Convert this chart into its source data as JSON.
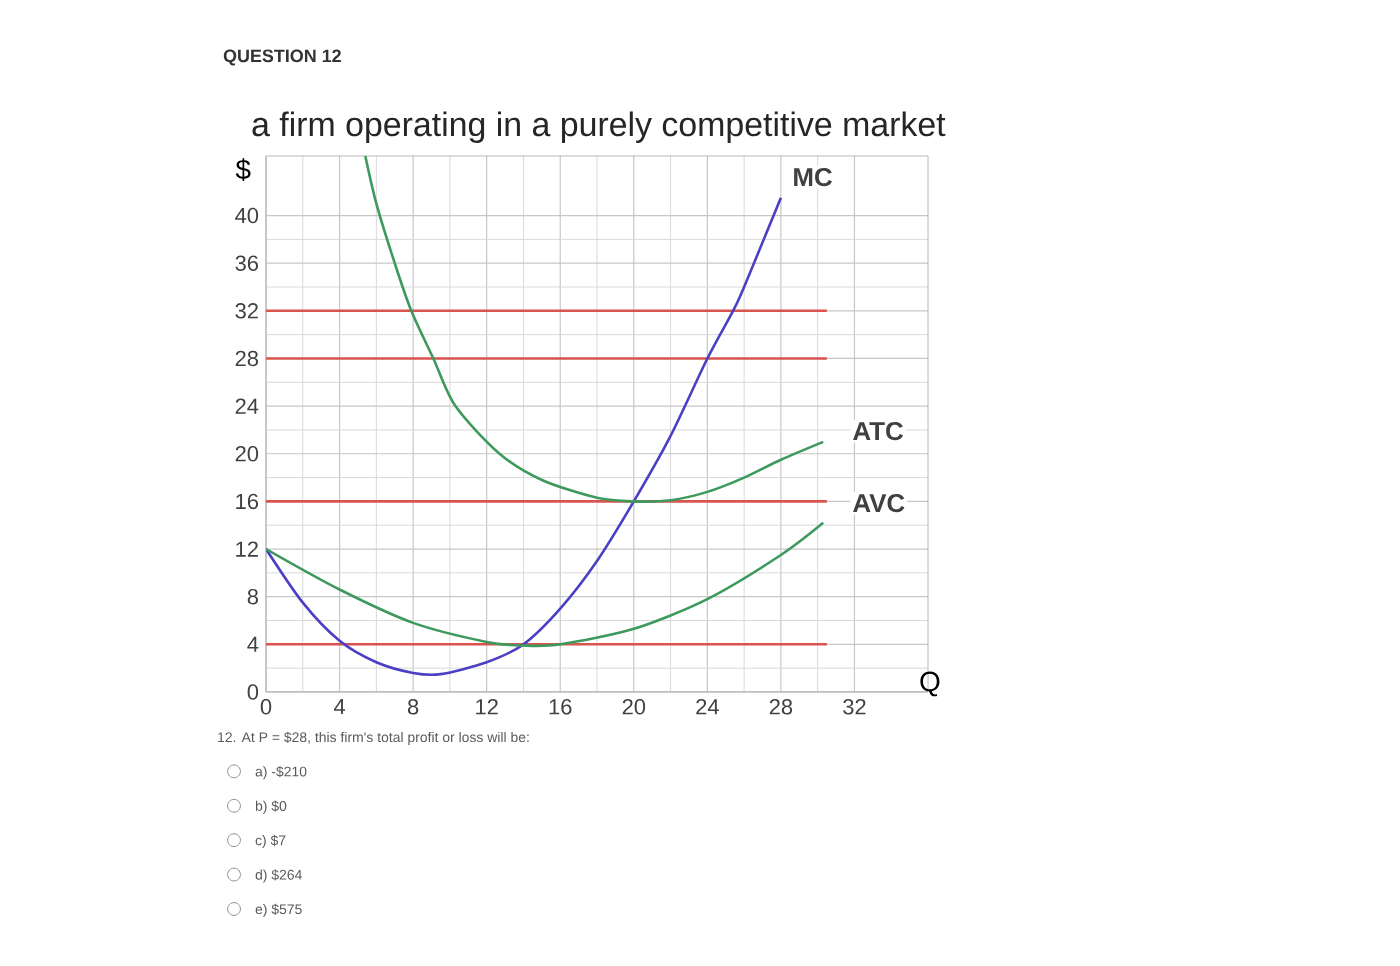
{
  "chart_data": {
    "type": "line",
    "title": "a firm operating in a purely competitive market",
    "xlabel": "Q",
    "ylabel": "$",
    "x": [
      0,
      2,
      4,
      6,
      8,
      9.5,
      12,
      14,
      16,
      18,
      20,
      22,
      24,
      25.4,
      26,
      28
    ],
    "series": [
      {
        "color": "#d9534f",
        "type": "step",
        "x": [
          0,
          30.5
        ],
        "values": [
          32,
          32
        ]
      },
      {
        "color": "#d9534f",
        "type": "step",
        "x": [
          0,
          30.5
        ],
        "values": [
          28,
          28
        ]
      },
      {
        "color": "#d9534f",
        "type": "step",
        "x": [
          0,
          30.5
        ],
        "values": [
          16,
          16
        ]
      },
      {
        "color": "#d9534f",
        "type": "step",
        "x": [
          0,
          30.5
        ],
        "values": [
          4,
          4
        ]
      },
      {
        "color": "#4b3fc4",
        "values": [
          12,
          7.5,
          4.3,
          2.5,
          1.6,
          1.5,
          2.5,
          4,
          7,
          11,
          16,
          21.5,
          28,
          32,
          34,
          41.5
        ]
      },
      {
        "color": "#3d9a5c",
        "x": [
          5.4,
          6,
          7,
          7.9,
          9.1,
          10.3,
          12.7,
          15,
          18,
          20,
          22,
          24,
          26,
          28,
          30.3
        ],
        "values": [
          45,
          41,
          36,
          32,
          28,
          24,
          20,
          17.8,
          16.3,
          16,
          16.1,
          16.8,
          18,
          19.5,
          21
        ]
      },
      {
        "color": "#3d9a5c",
        "x": [
          0,
          4,
          8,
          12,
          14,
          16,
          20,
          24,
          28,
          30.3
        ],
        "values": [
          12,
          8.6,
          5.8,
          4.2,
          3.9,
          4,
          5.3,
          7.8,
          11.5,
          14.2
        ]
      }
    ],
    "annotations": [
      "QUESTION 12",
      "12. At P = $28, this firm's total profit or loss will be:",
      "a) -$210",
      "b) $0",
      "c) $7",
      "d) $264",
      "e) $575",
      "MC",
      "ATC",
      "AVC"
    ],
    "xlim": [
      0,
      36
    ],
    "ylim": [
      0,
      45
    ],
    "xticks": [
      0,
      4,
      8,
      12,
      16,
      20,
      24,
      28,
      32
    ],
    "yticks": [
      0,
      4,
      8,
      12,
      16,
      20,
      24,
      28,
      32,
      36,
      40
    ],
    "grid": true,
    "marker": "none",
    "line_style": "solid"
  }
}
